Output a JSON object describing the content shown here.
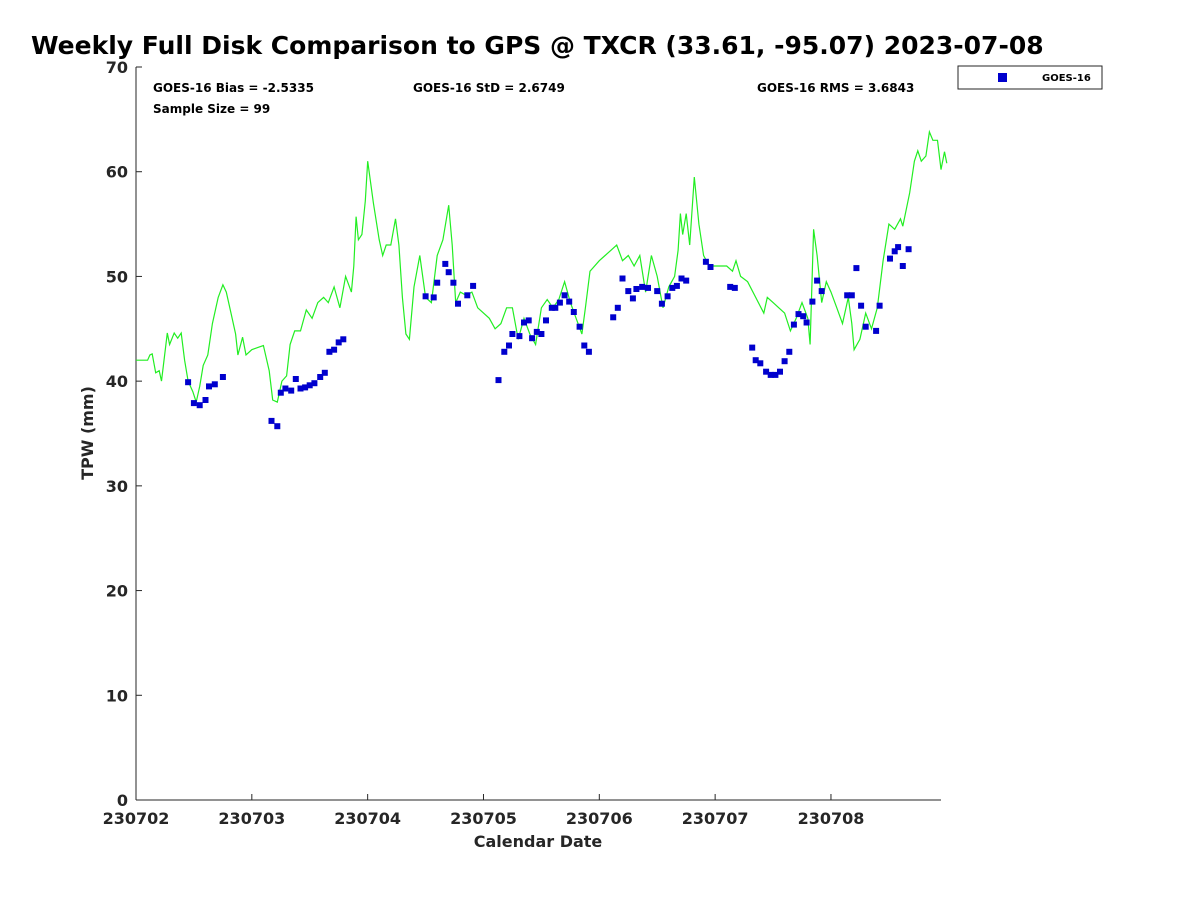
{
  "chart_data": {
    "type": "scatter",
    "title": "Weekly Full Disk Comparison to GPS @ TXCR (33.61, -95.07) 2023-07-08",
    "xlabel": "Calendar Date",
    "ylabel": "TPW (mm)",
    "xlim": [
      "230702",
      "230709"
    ],
    "ylim": [
      0,
      70
    ],
    "xticks": [
      "230702",
      "230703",
      "230704",
      "230705",
      "230706",
      "230707",
      "230708"
    ],
    "yticks": [
      "0",
      "10",
      "20",
      "30",
      "40",
      "50",
      "60",
      "70"
    ],
    "grid": false,
    "legend_position": "top-right",
    "stats": {
      "bias": "GOES-16 Bias = -2.5335",
      "std": "GOES-16 StD = 2.6749",
      "rms": "GOES-16 RMS = 3.6843",
      "sample": "Sample Size = 99"
    },
    "series": [
      {
        "name": "GOES-16",
        "kind": "scatter",
        "color": "#0000cd",
        "points": [
          [
            0.45,
            39.9
          ],
          [
            0.5,
            37.9
          ],
          [
            0.55,
            37.7
          ],
          [
            0.6,
            38.2
          ],
          [
            0.63,
            39.5
          ],
          [
            0.68,
            39.7
          ],
          [
            0.75,
            40.4
          ],
          [
            1.17,
            36.2
          ],
          [
            1.22,
            35.7
          ],
          [
            1.25,
            38.9
          ],
          [
            1.29,
            39.3
          ],
          [
            1.34,
            39.1
          ],
          [
            1.38,
            40.2
          ],
          [
            1.42,
            39.3
          ],
          [
            1.46,
            39.4
          ],
          [
            1.5,
            39.6
          ],
          [
            1.54,
            39.8
          ],
          [
            1.59,
            40.4
          ],
          [
            1.63,
            40.8
          ],
          [
            1.67,
            42.8
          ],
          [
            1.71,
            43.0
          ],
          [
            1.75,
            43.7
          ],
          [
            1.79,
            44.0
          ],
          [
            2.5,
            48.1
          ],
          [
            2.57,
            48.0
          ],
          [
            2.6,
            49.4
          ],
          [
            2.67,
            51.2
          ],
          [
            2.7,
            50.4
          ],
          [
            2.74,
            49.4
          ],
          [
            2.78,
            47.4
          ],
          [
            2.86,
            48.2
          ],
          [
            2.91,
            49.1
          ],
          [
            3.13,
            40.1
          ],
          [
            3.18,
            42.8
          ],
          [
            3.22,
            43.4
          ],
          [
            3.25,
            44.5
          ],
          [
            3.31,
            44.3
          ],
          [
            3.35,
            45.6
          ],
          [
            3.39,
            45.8
          ],
          [
            3.42,
            44.1
          ],
          [
            3.46,
            44.7
          ],
          [
            3.5,
            44.5
          ],
          [
            3.54,
            45.8
          ],
          [
            3.59,
            47.0
          ],
          [
            3.62,
            47.0
          ],
          [
            3.66,
            47.5
          ],
          [
            3.7,
            48.2
          ],
          [
            3.74,
            47.6
          ],
          [
            3.78,
            46.6
          ],
          [
            3.83,
            45.2
          ],
          [
            3.87,
            43.4
          ],
          [
            3.91,
            42.8
          ],
          [
            4.12,
            46.1
          ],
          [
            4.16,
            47.0
          ],
          [
            4.2,
            49.8
          ],
          [
            4.25,
            48.6
          ],
          [
            4.29,
            47.9
          ],
          [
            4.32,
            48.8
          ],
          [
            4.37,
            49.0
          ],
          [
            4.42,
            48.9
          ],
          [
            4.5,
            48.6
          ],
          [
            4.54,
            47.4
          ],
          [
            4.59,
            48.1
          ],
          [
            4.63,
            48.9
          ],
          [
            4.67,
            49.1
          ],
          [
            4.71,
            49.8
          ],
          [
            4.75,
            49.6
          ],
          [
            4.92,
            51.4
          ],
          [
            4.96,
            50.9
          ],
          [
            5.13,
            49.0
          ],
          [
            5.17,
            48.9
          ],
          [
            5.32,
            43.2
          ],
          [
            5.35,
            42.0
          ],
          [
            5.39,
            41.7
          ],
          [
            5.44,
            40.9
          ],
          [
            5.48,
            40.6
          ],
          [
            5.52,
            40.6
          ],
          [
            5.56,
            40.9
          ],
          [
            5.6,
            41.9
          ],
          [
            5.64,
            42.8
          ],
          [
            5.68,
            45.4
          ],
          [
            5.72,
            46.4
          ],
          [
            5.76,
            46.2
          ],
          [
            5.79,
            45.6
          ],
          [
            5.84,
            47.6
          ],
          [
            5.88,
            49.6
          ],
          [
            5.92,
            48.6
          ],
          [
            6.14,
            48.2
          ],
          [
            6.18,
            48.2
          ],
          [
            6.22,
            50.8
          ],
          [
            6.26,
            47.2
          ],
          [
            6.3,
            45.2
          ],
          [
            6.39,
            44.8
          ],
          [
            6.42,
            47.2
          ],
          [
            6.51,
            51.7
          ],
          [
            6.55,
            52.4
          ],
          [
            6.58,
            52.8
          ],
          [
            6.62,
            51.0
          ],
          [
            6.67,
            52.6
          ]
        ]
      },
      {
        "name": "",
        "kind": "line",
        "color": "#22ee22",
        "points": [
          [
            0.0,
            42.0
          ],
          [
            0.1,
            42.0
          ],
          [
            0.12,
            42.5
          ],
          [
            0.14,
            42.6
          ],
          [
            0.17,
            40.8
          ],
          [
            0.2,
            41.0
          ],
          [
            0.22,
            40.0
          ],
          [
            0.27,
            44.6
          ],
          [
            0.29,
            43.5
          ],
          [
            0.33,
            44.6
          ],
          [
            0.36,
            44.1
          ],
          [
            0.39,
            44.6
          ],
          [
            0.42,
            42.0
          ],
          [
            0.45,
            40.0
          ],
          [
            0.49,
            39.0
          ],
          [
            0.52,
            38.0
          ],
          [
            0.55,
            39.5
          ],
          [
            0.58,
            41.5
          ],
          [
            0.62,
            42.5
          ],
          [
            0.66,
            45.5
          ],
          [
            0.69,
            47.0
          ],
          [
            0.71,
            48.0
          ],
          [
            0.75,
            49.2
          ],
          [
            0.78,
            48.5
          ],
          [
            0.82,
            46.5
          ],
          [
            0.86,
            44.5
          ],
          [
            0.88,
            42.5
          ],
          [
            0.92,
            44.2
          ],
          [
            0.95,
            42.5
          ],
          [
            1.0,
            43.0
          ],
          [
            1.05,
            43.2
          ],
          [
            1.1,
            43.4
          ],
          [
            1.15,
            41.0
          ],
          [
            1.18,
            38.2
          ],
          [
            1.22,
            38.0
          ],
          [
            1.26,
            40.0
          ],
          [
            1.3,
            40.5
          ],
          [
            1.33,
            43.5
          ],
          [
            1.37,
            44.8
          ],
          [
            1.42,
            44.8
          ],
          [
            1.47,
            46.8
          ],
          [
            1.52,
            46.0
          ],
          [
            1.57,
            47.5
          ],
          [
            1.62,
            48.0
          ],
          [
            1.66,
            47.5
          ],
          [
            1.71,
            49.0
          ],
          [
            1.76,
            47.0
          ],
          [
            1.81,
            50.0
          ],
          [
            1.86,
            48.5
          ],
          [
            1.88,
            51.0
          ],
          [
            1.9,
            55.7
          ],
          [
            1.92,
            53.5
          ],
          [
            1.95,
            54.0
          ],
          [
            1.98,
            57.2
          ],
          [
            2.0,
            61.0
          ],
          [
            2.05,
            57.0
          ],
          [
            2.1,
            53.5
          ],
          [
            2.13,
            52.0
          ],
          [
            2.16,
            53.0
          ],
          [
            2.2,
            53.0
          ],
          [
            2.24,
            55.5
          ],
          [
            2.27,
            53.0
          ],
          [
            2.3,
            48.0
          ],
          [
            2.33,
            44.5
          ],
          [
            2.36,
            44.0
          ],
          [
            2.4,
            49.0
          ],
          [
            2.45,
            52.0
          ],
          [
            2.5,
            48.0
          ],
          [
            2.55,
            47.5
          ],
          [
            2.6,
            52.0
          ],
          [
            2.65,
            53.5
          ],
          [
            2.7,
            56.8
          ],
          [
            2.73,
            53.0
          ],
          [
            2.76,
            47.5
          ],
          [
            2.8,
            48.5
          ],
          [
            2.85,
            48.2
          ],
          [
            2.9,
            48.5
          ],
          [
            2.95,
            47.0
          ],
          [
            3.05,
            46.0
          ],
          [
            3.1,
            45.0
          ],
          [
            3.15,
            45.5
          ],
          [
            3.2,
            47.0
          ],
          [
            3.25,
            47.0
          ],
          [
            3.3,
            44.0
          ],
          [
            3.35,
            46.0
          ],
          [
            3.4,
            44.5
          ],
          [
            3.45,
            43.5
          ],
          [
            3.5,
            47.0
          ],
          [
            3.55,
            47.8
          ],
          [
            3.6,
            47.0
          ],
          [
            3.65,
            47.8
          ],
          [
            3.7,
            49.5
          ],
          [
            3.75,
            47.5
          ],
          [
            3.8,
            46.0
          ],
          [
            3.85,
            44.5
          ],
          [
            3.88,
            47.0
          ],
          [
            3.92,
            50.5
          ],
          [
            4.0,
            51.5
          ],
          [
            4.05,
            52.0
          ],
          [
            4.1,
            52.5
          ],
          [
            4.15,
            53.0
          ],
          [
            4.2,
            51.5
          ],
          [
            4.25,
            52.0
          ],
          [
            4.3,
            51.0
          ],
          [
            4.35,
            52.0
          ],
          [
            4.4,
            48.5
          ],
          [
            4.45,
            52.0
          ],
          [
            4.5,
            50.0
          ],
          [
            4.55,
            47.0
          ],
          [
            4.6,
            49.0
          ],
          [
            4.65,
            50.0
          ],
          [
            4.68,
            52.5
          ],
          [
            4.7,
            56.0
          ],
          [
            4.72,
            54.0
          ],
          [
            4.75,
            56.0
          ],
          [
            4.78,
            53.0
          ],
          [
            4.82,
            59.5
          ],
          [
            4.86,
            55.0
          ],
          [
            4.9,
            52.0
          ],
          [
            4.95,
            51.0
          ],
          [
            5.0,
            51.0
          ],
          [
            5.05,
            51.0
          ],
          [
            5.1,
            51.0
          ],
          [
            5.15,
            50.5
          ],
          [
            5.18,
            51.5
          ],
          [
            5.22,
            50.0
          ],
          [
            5.28,
            49.5
          ],
          [
            5.35,
            48.0
          ],
          [
            5.42,
            46.5
          ],
          [
            5.45,
            48.0
          ],
          [
            5.5,
            47.5
          ],
          [
            5.55,
            47.0
          ],
          [
            5.6,
            46.5
          ],
          [
            5.65,
            44.8
          ],
          [
            5.7,
            46.0
          ],
          [
            5.75,
            47.5
          ],
          [
            5.8,
            46.0
          ],
          [
            5.82,
            43.5
          ],
          [
            5.85,
            54.5
          ],
          [
            5.88,
            52.0
          ],
          [
            5.92,
            47.5
          ],
          [
            5.96,
            49.5
          ],
          [
            6.0,
            48.5
          ],
          [
            6.05,
            47.0
          ],
          [
            6.1,
            45.5
          ],
          [
            6.15,
            48.0
          ],
          [
            6.18,
            45.5
          ],
          [
            6.2,
            43.0
          ],
          [
            6.25,
            44.0
          ],
          [
            6.3,
            46.5
          ],
          [
            6.35,
            45.0
          ],
          [
            6.4,
            47.0
          ],
          [
            6.45,
            51.5
          ],
          [
            6.5,
            55.0
          ],
          [
            6.55,
            54.5
          ],
          [
            6.6,
            55.5
          ],
          [
            6.62,
            54.8
          ],
          [
            6.68,
            58.0
          ],
          [
            6.72,
            61.0
          ],
          [
            6.75,
            62.0
          ],
          [
            6.78,
            61.0
          ],
          [
            6.82,
            61.5
          ],
          [
            6.85,
            63.8
          ],
          [
            6.88,
            63.0
          ],
          [
            6.92,
            63.0
          ],
          [
            6.95,
            60.2
          ],
          [
            6.98,
            61.9
          ],
          [
            7.0,
            60.8
          ]
        ]
      }
    ]
  }
}
